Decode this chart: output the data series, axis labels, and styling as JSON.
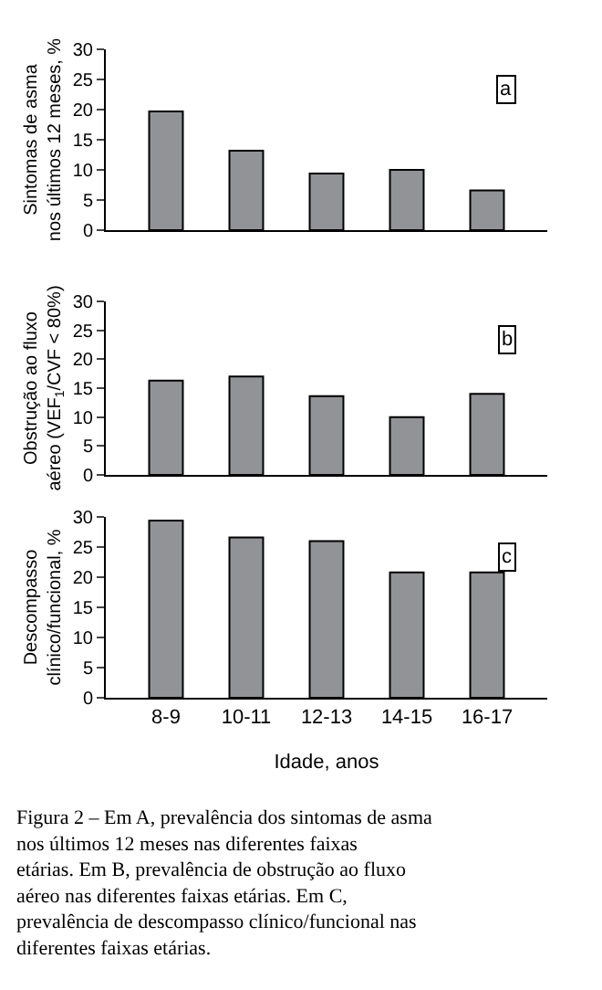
{
  "chart_data": [
    {
      "type": "bar",
      "ylabel": "Sintomas de asma\nnos últimos 12 meses, %",
      "categories": [
        null,
        null,
        null,
        null,
        null
      ],
      "values": [
        19.7,
        13.2,
        9.4,
        10,
        6.6
      ],
      "color": "#929396",
      "ylim": [
        0,
        30
      ],
      "yticks": [
        0,
        5,
        10,
        15,
        20,
        25,
        30
      ],
      "tick_labels": "y",
      "annotations": [
        "a"
      ]
    },
    {
      "type": "bar",
      "ylabel": "Obstrução ao fluxo\naéreo (VEF$_{1}$/CVF < 80%)",
      "categories": [
        null,
        null,
        null,
        null,
        null
      ],
      "values": [
        16.3,
        17,
        13.6,
        10,
        14
      ],
      "color": "#929396",
      "ylim": [
        0,
        30
      ],
      "yticks": [
        0,
        5,
        10,
        15,
        20,
        25,
        30
      ],
      "tick_labels": "y",
      "annotations": [
        "b"
      ]
    },
    {
      "type": "bar",
      "ylabel": "Descompasso\nclínico/funcional, %",
      "xlabel": "Idade, anos",
      "categories": [
        "8-9",
        "10-11",
        "12-13",
        "14-15",
        "16-17"
      ],
      "values": [
        29.4,
        26.6,
        26,
        20.8,
        20.8
      ],
      "color": "#929396",
      "ylim": [
        0,
        30
      ],
      "yticks": [
        0,
        5,
        10,
        15,
        20,
        25,
        30
      ],
      "annotations": [
        "c",
        "Figura 2 – Em A, prevalência dos sintomas de asma nos últimos 12 meses nas diferentes faixas etárias. Em B, prevalência de obstrução ao fluxo aéreo nas diferentes faixas etárias. Em C, prevalência de descompasso clínico/funcional nas diferentes faixas etárias."
      ]
    }
  ]
}
